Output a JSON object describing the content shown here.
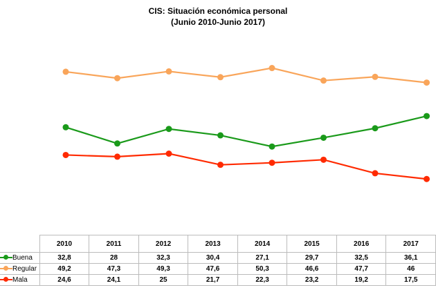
{
  "chart_data": {
    "type": "line",
    "title": "CIS: Situación económica personal",
    "subtitle": "(Junio 2010-Junio 2017)",
    "categories": [
      "2010",
      "2011",
      "2012",
      "2013",
      "2014",
      "2015",
      "2016",
      "2017"
    ],
    "series": [
      {
        "name": "Buena",
        "color": "#1a9a1a",
        "values": [
          "32,8",
          "28",
          "32,3",
          "30,4",
          "27,1",
          "29,7",
          "32,5",
          "36,1"
        ]
      },
      {
        "name": "Regular",
        "color": "#f9a55a",
        "values": [
          "49,2",
          "47,3",
          "49,3",
          "47,6",
          "50,3",
          "46,6",
          "47,7",
          "46"
        ]
      },
      {
        "name": "Mala",
        "color": "#ff2a00",
        "values": [
          "24,6",
          "24,1",
          "25",
          "21,7",
          "22,3",
          "23,2",
          "19,2",
          "17,5"
        ]
      }
    ],
    "legend": "table-bottom"
  }
}
